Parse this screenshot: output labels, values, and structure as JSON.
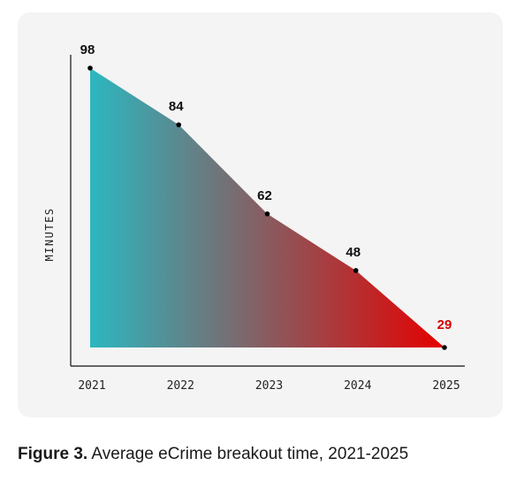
{
  "chart_data": {
    "type": "area",
    "x": [
      "2021",
      "2022",
      "2023",
      "2024",
      "2025"
    ],
    "values": [
      98,
      84,
      62,
      48,
      29
    ],
    "data_labels": [
      "98",
      "84",
      "62",
      "48",
      "29"
    ],
    "ylabel": "MINUTES",
    "xlabel": "",
    "ylim": [
      29,
      98
    ],
    "grid": false,
    "colors": {
      "gradient_start": "#2cb7c0",
      "gradient_end": "#e50000",
      "highlight_label": "#d40000",
      "label": "#111111"
    }
  },
  "caption": {
    "figure_label": "Figure 3.",
    "text": "Average eCrime breakout time, 2021-2025"
  }
}
